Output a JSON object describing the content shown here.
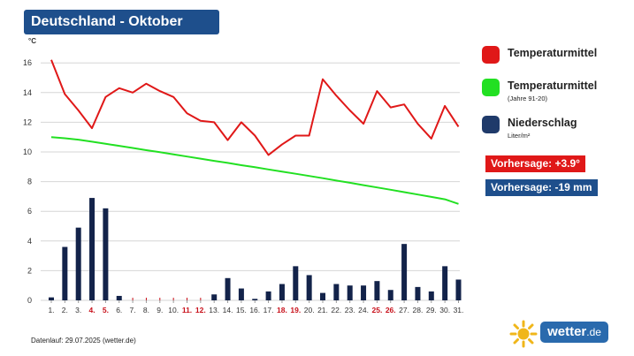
{
  "title": "Deutschland - Oktober",
  "unit": "°C",
  "legend": {
    "items": [
      {
        "label": "Temperaturmittel",
        "sub": "",
        "color": "#e01818"
      },
      {
        "label": "Temperaturmittel",
        "sub": "(Jahre 91-20)",
        "color": "#22e022"
      },
      {
        "label": "Niederschlag",
        "sub": "Liter/m²",
        "color": "#1f3a6a"
      }
    ]
  },
  "forecast": {
    "temp": {
      "text": "Vorhersage: +3.9°",
      "color": "#e01818"
    },
    "precip": {
      "text": "Vorhersage: -19 mm",
      "color": "#1e4f8c"
    }
  },
  "footer": "Datenlauf: 29.07.2025 (wetter.de)",
  "logo": {
    "text": "wetter",
    "suffix": ".de"
  },
  "chart_data": {
    "type": "line",
    "x": [
      "1.",
      "2.",
      "3.",
      "4.",
      "5.",
      "6.",
      "7.",
      "8.",
      "9.",
      "10.",
      "11.",
      "12.",
      "13.",
      "14.",
      "15.",
      "16.",
      "17.",
      "18.",
      "19.",
      "20.",
      "21.",
      "22.",
      "23.",
      "24.",
      "25.",
      "26.",
      "27.",
      "28.",
      "29.",
      "30.",
      "31."
    ],
    "highlight_days": [
      4,
      5,
      11,
      12,
      18,
      19,
      25,
      26
    ],
    "ylim": [
      0,
      16
    ],
    "yticks": [
      0,
      2,
      4,
      6,
      8,
      10,
      12,
      14,
      16
    ],
    "grid": true,
    "series": [
      {
        "name": "Temperaturmittel",
        "kind": "line",
        "color": "#e01818",
        "values": [
          16.2,
          13.9,
          12.8,
          11.6,
          13.7,
          14.3,
          14.0,
          14.6,
          14.1,
          13.7,
          12.6,
          12.1,
          12.0,
          10.8,
          12.0,
          11.1,
          9.8,
          10.5,
          11.1,
          11.1,
          14.9,
          13.8,
          12.8,
          11.9,
          14.1,
          13.0,
          13.2,
          11.9,
          10.9,
          13.1,
          11.7
        ]
      },
      {
        "name": "Temperaturmittel (Jahre 91-20)",
        "kind": "line",
        "color": "#22e022",
        "values": [
          11.0,
          10.92,
          10.83,
          10.69,
          10.55,
          10.41,
          10.27,
          10.12,
          9.98,
          9.84,
          9.69,
          9.55,
          9.4,
          9.26,
          9.11,
          8.97,
          8.82,
          8.68,
          8.53,
          8.38,
          8.23,
          8.07,
          7.92,
          7.76,
          7.61,
          7.45,
          7.29,
          7.13,
          6.97,
          6.81,
          6.5
        ]
      },
      {
        "name": "Niederschlag",
        "kind": "bar",
        "color": "#13234a",
        "values": [
          0.2,
          3.6,
          4.9,
          6.9,
          6.2,
          0.3,
          0,
          0,
          0,
          0,
          0,
          0,
          0.4,
          1.5,
          0.8,
          0.1,
          0.6,
          1.1,
          2.3,
          1.7,
          0.5,
          1.1,
          1.0,
          1.0,
          1.3,
          0.7,
          3.8,
          0.9,
          0.6,
          2.3,
          1.4
        ]
      }
    ]
  }
}
